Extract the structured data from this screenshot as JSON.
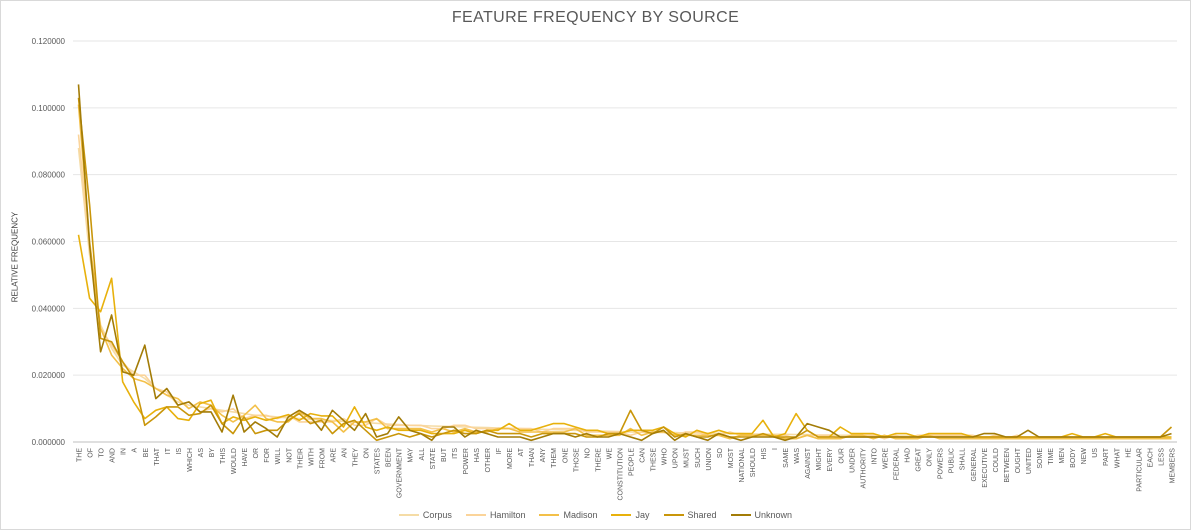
{
  "chart_data": {
    "type": "line",
    "title": "FEATURE FREQUENCY BY SOURCE",
    "xlabel": "",
    "ylabel": "RELATIVE FREQUENCY",
    "ylim": [
      0,
      0.12
    ],
    "yticks": [
      "0.000000",
      "0.020000",
      "0.040000",
      "0.060000",
      "0.080000",
      "0.100000",
      "0.120000"
    ],
    "grid": "horizontal",
    "legend_position": "bottom",
    "categories": [
      "THE",
      "OF",
      "TO",
      "AND",
      "IN",
      "A",
      "BE",
      "THAT",
      "IT",
      "IS",
      "WHICH",
      "AS",
      "BY",
      "THIS",
      "WOULD",
      "HAVE",
      "OR",
      "FOR",
      "WILL",
      "NOT",
      "THEIR",
      "WITH",
      "FROM",
      "ARE",
      "AN",
      "THEY",
      "ON",
      "STATES",
      "BEEN",
      "GOVERNMENT",
      "MAY",
      "ALL",
      "STATE",
      "BUT",
      "ITS",
      "POWER",
      "HAS",
      "OTHER",
      "IF",
      "MORE",
      "AT",
      "THAN",
      "ANY",
      "THEM",
      "ONE",
      "THOSE",
      "NO",
      "THERE",
      "WE",
      "CONSTITUTION",
      "PEOPLE",
      "CAN",
      "THESE",
      "WHO",
      "UPON",
      "MUST",
      "SUCH",
      "UNION",
      "SO",
      "MOST",
      "NATIONAL",
      "SHOULD",
      "HIS",
      "I",
      "SAME",
      "WAS",
      "AGAINST",
      "MIGHT",
      "EVERY",
      "OUR",
      "UNDER",
      "AUTHORITY",
      "INTO",
      "WERE",
      "FEDERAL",
      "HAD",
      "GREAT",
      "ONLY",
      "POWERS",
      "PUBLIC",
      "SHALL",
      "GENERAL",
      "EXECUTIVE",
      "COULD",
      "BETWEEN",
      "OUGHT",
      "UNITED",
      "SOME",
      "TIME",
      "MEN",
      "BODY",
      "NEW",
      "US",
      "PART",
      "WHAT",
      "HE",
      "PARTICULAR",
      "EACH",
      "LESS",
      "MEMBERS"
    ],
    "series": [
      {
        "name": "Corpus",
        "color": "#f5dca6",
        "values": [
          0.088,
          0.056,
          0.035,
          0.028,
          0.023,
          0.021,
          0.019,
          0.016,
          0.014,
          0.012,
          0.011,
          0.0105,
          0.01,
          0.0095,
          0.009,
          0.0085,
          0.008,
          0.0078,
          0.0075,
          0.0072,
          0.007,
          0.0068,
          0.0066,
          0.0064,
          0.0062,
          0.006,
          0.0058,
          0.0056,
          0.0054,
          0.0052,
          0.005,
          0.0049,
          0.0048,
          0.0047,
          0.0046,
          0.0045,
          0.0044,
          0.0043,
          0.0042,
          0.0041,
          0.004,
          0.0039,
          0.0038,
          0.0037,
          0.0036,
          0.0035,
          0.0034,
          0.0033,
          0.0032,
          0.0031,
          0.003,
          0.0029,
          0.0029,
          0.0028,
          0.0028,
          0.0027,
          0.0027,
          0.0026,
          0.0026,
          0.0025,
          0.0025,
          0.0024,
          0.0024,
          0.0023,
          0.0023,
          0.0022,
          0.0022,
          0.0021,
          0.0021,
          0.002,
          0.002,
          0.0019,
          0.0019,
          0.0018,
          0.0018,
          0.0018,
          0.0017,
          0.0017,
          0.0017,
          0.0016,
          0.0016,
          0.0016,
          0.0015,
          0.0015,
          0.0015,
          0.0014,
          0.0014,
          0.0014,
          0.0013,
          0.0013,
          0.0013,
          0.0012,
          0.0012,
          0.0012,
          0.0011,
          0.0011,
          0.0011,
          0.001,
          0.001,
          0.001
        ]
      },
      {
        "name": "Hamilton",
        "color": "#fbd49a",
        "values": [
          0.092,
          0.058,
          0.034,
          0.029,
          0.024,
          0.02,
          0.02,
          0.016,
          0.015,
          0.011,
          0.012,
          0.009,
          0.01,
          0.009,
          0.01,
          0.007,
          0.008,
          0.008,
          0.007,
          0.008,
          0.006,
          0.006,
          0.006,
          0.006,
          0.007,
          0.005,
          0.005,
          0.007,
          0.005,
          0.005,
          0.005,
          0.005,
          0.004,
          0.004,
          0.005,
          0.005,
          0.004,
          0.004,
          0.004,
          0.004,
          0.004,
          0.004,
          0.003,
          0.004,
          0.004,
          0.004,
          0.003,
          0.003,
          0.003,
          0.003,
          0.002,
          0.003,
          0.003,
          0.003,
          0.002,
          0.003,
          0.003,
          0.002,
          0.002,
          0.003,
          0.002,
          0.002,
          0.002,
          0.002,
          0.002,
          0.001,
          0.002,
          0.002,
          0.002,
          0.001,
          0.002,
          0.002,
          0.002,
          0.001,
          0.002,
          0.001,
          0.002,
          0.002,
          0.002,
          0.002,
          0.002,
          0.002,
          0.001,
          0.002,
          0.001,
          0.002,
          0.001,
          0.001,
          0.001,
          0.001,
          0.001,
          0.001,
          0.001,
          0.001,
          0.001,
          0.001,
          0.001,
          0.001,
          0.001,
          0.001
        ]
      },
      {
        "name": "Madison",
        "color": "#f3c049",
        "values": [
          0.101,
          0.06,
          0.034,
          0.026,
          0.022,
          0.019,
          0.018,
          0.016,
          0.014,
          0.013,
          0.01,
          0.012,
          0.011,
          0.008,
          0.006,
          0.008,
          0.011,
          0.007,
          0.006,
          0.006,
          0.009,
          0.007,
          0.007,
          0.006,
          0.003,
          0.006,
          0.006,
          0.007,
          0.004,
          0.004,
          0.004,
          0.004,
          0.003,
          0.004,
          0.003,
          0.004,
          0.003,
          0.003,
          0.004,
          0.004,
          0.003,
          0.003,
          0.003,
          0.003,
          0.003,
          0.004,
          0.002,
          0.002,
          0.002,
          0.002,
          0.004,
          0.002,
          0.003,
          0.003,
          0.002,
          0.002,
          0.002,
          0.002,
          0.002,
          0.001,
          0.002,
          0.002,
          0.002,
          0.002,
          0.001,
          0.001,
          0.002,
          0.001,
          0.001,
          0.001,
          0.002,
          0.002,
          0.001,
          0.002,
          0.001,
          0.001,
          0.001,
          0.002,
          0.001,
          0.001,
          0.001,
          0.001,
          0.001,
          0.001,
          0.001,
          0.001,
          0.001,
          0.001,
          0.001,
          0.001,
          0.001,
          0.001,
          0.001,
          0.001,
          0.001,
          0.001,
          0.001,
          0.001,
          0.001,
          0.001
        ]
      },
      {
        "name": "Jay",
        "color": "#e8b10c",
        "values": [
          0.062,
          0.043,
          0.039,
          0.049,
          0.018,
          0.012,
          0.007,
          0.0095,
          0.0105,
          0.007,
          0.0065,
          0.0115,
          0.0125,
          0.0055,
          0.0075,
          0.0065,
          0.0075,
          0.0065,
          0.0072,
          0.0082,
          0.0065,
          0.0085,
          0.0078,
          0.0078,
          0.0045,
          0.0105,
          0.0045,
          0.0035,
          0.0045,
          0.0035,
          0.0035,
          0.0035,
          0.0025,
          0.0025,
          0.0025,
          0.0035,
          0.0025,
          0.0035,
          0.0035,
          0.0055,
          0.0035,
          0.0035,
          0.0045,
          0.0055,
          0.0055,
          0.0045,
          0.0035,
          0.0035,
          0.0025,
          0.0025,
          0.0035,
          0.0035,
          0.0035,
          0.0045,
          0.0025,
          0.0015,
          0.0035,
          0.0025,
          0.0035,
          0.0025,
          0.0025,
          0.0025,
          0.0065,
          0.0015,
          0.0025,
          0.0085,
          0.0035,
          0.0015,
          0.0015,
          0.0045,
          0.0025,
          0.0025,
          0.0025,
          0.0015,
          0.0025,
          0.0025,
          0.0015,
          0.0025,
          0.0025,
          0.0025,
          0.0025,
          0.0015,
          0.0015,
          0.0015,
          0.0015,
          0.0015,
          0.0015,
          0.0015,
          0.0015,
          0.0015,
          0.0025,
          0.0015,
          0.0015,
          0.0025,
          0.0015,
          0.0015,
          0.0015,
          0.0015,
          0.0015,
          0.0015
        ]
      },
      {
        "name": "Shared",
        "color": "#c9960a",
        "values": [
          0.103,
          0.071,
          0.031,
          0.03,
          0.024,
          0.019,
          0.005,
          0.0075,
          0.0105,
          0.0105,
          0.008,
          0.0085,
          0.011,
          0.0055,
          0.0025,
          0.0075,
          0.0025,
          0.0035,
          0.0035,
          0.0065,
          0.0085,
          0.0055,
          0.0065,
          0.0025,
          0.0055,
          0.0065,
          0.0035,
          0.0005,
          0.0015,
          0.0025,
          0.0015,
          0.0025,
          0.0015,
          0.0025,
          0.0035,
          0.0025,
          0.0025,
          0.0035,
          0.0025,
          0.0025,
          0.0025,
          0.0015,
          0.0025,
          0.0025,
          0.0025,
          0.0025,
          0.0015,
          0.0015,
          0.0025,
          0.0025,
          0.0095,
          0.0035,
          0.0025,
          0.0045,
          0.0015,
          0.0025,
          0.0015,
          0.0015,
          0.0025,
          0.0015,
          0.0015,
          0.0015,
          0.0025,
          0.0015,
          0.0015,
          0.0015,
          0.0035,
          0.0015,
          0.0015,
          0.0015,
          0.0015,
          0.0015,
          0.0015,
          0.0015,
          0.0015,
          0.0015,
          0.0015,
          0.0015,
          0.0015,
          0.0015,
          0.0015,
          0.0015,
          0.0015,
          0.0015,
          0.0015,
          0.0015,
          0.0015,
          0.0015,
          0.0015,
          0.0015,
          0.0015,
          0.0015,
          0.0015,
          0.0015,
          0.0015,
          0.0015,
          0.0015,
          0.0015,
          0.0015,
          0.0045
        ]
      },
      {
        "name": "Unknown",
        "color": "#a37c07",
        "values": [
          0.107,
          0.059,
          0.027,
          0.038,
          0.021,
          0.02,
          0.029,
          0.013,
          0.016,
          0.011,
          0.012,
          0.009,
          0.009,
          0.003,
          0.014,
          0.003,
          0.006,
          0.004,
          0.0015,
          0.0075,
          0.0095,
          0.0075,
          0.0035,
          0.0095,
          0.0065,
          0.0035,
          0.0085,
          0.0015,
          0.0025,
          0.0075,
          0.0035,
          0.0025,
          0.0005,
          0.0045,
          0.0045,
          0.0015,
          0.0035,
          0.0025,
          0.0015,
          0.0015,
          0.0015,
          0.0005,
          0.0015,
          0.0025,
          0.0025,
          0.0015,
          0.0025,
          0.0015,
          0.0015,
          0.0025,
          0.0015,
          0.0005,
          0.0025,
          0.0035,
          0.0005,
          0.0025,
          0.0015,
          0.0005,
          0.0025,
          0.0015,
          0.0005,
          0.0015,
          0.0015,
          0.0015,
          0.0005,
          0.0015,
          0.0055,
          0.0045,
          0.0035,
          0.0015,
          0.0015,
          0.0015,
          0.0015,
          0.0015,
          0.0015,
          0.0015,
          0.0015,
          0.0015,
          0.0015,
          0.0015,
          0.0015,
          0.0015,
          0.0025,
          0.0025,
          0.0015,
          0.0015,
          0.0035,
          0.0015,
          0.0015,
          0.0015,
          0.0015,
          0.0015,
          0.0015,
          0.0015,
          0.0015,
          0.0015,
          0.0015,
          0.0015,
          0.0015,
          0.0025
        ]
      }
    ]
  }
}
